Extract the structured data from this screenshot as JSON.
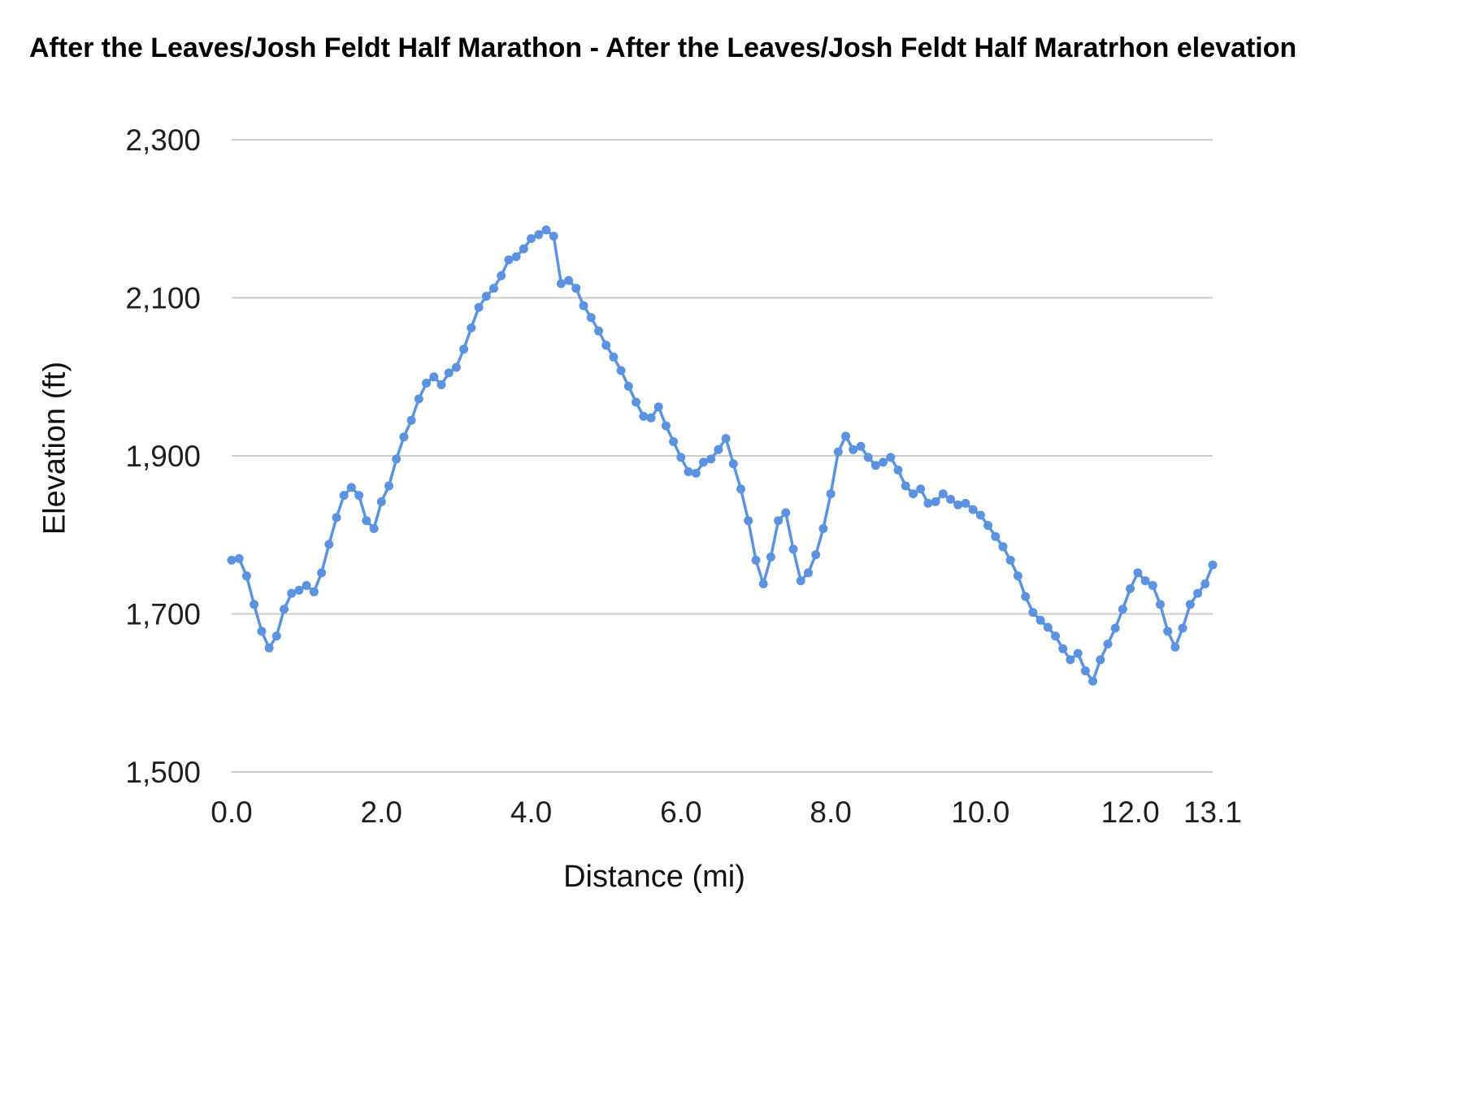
{
  "title": "After the Leaves/Josh Feldt Half Marathon - After the Leaves/Josh Feldt Half Maratrhon elevation",
  "chart_data": {
    "type": "line",
    "title": "After the Leaves/Josh Feldt Half Marathon - After the Leaves/Josh Feldt Half Maratrhon elevation",
    "xlabel": "Distance (mi)",
    "ylabel": "Elevation (ft)",
    "xlim": [
      0,
      13.1
    ],
    "ylim": [
      1500,
      2300
    ],
    "grid": "horizontal",
    "legend": "none",
    "series_color": "#5b93e0",
    "gridline_color": "#cccccc",
    "tick_color": "#1f1f1f",
    "xticks": {
      "values": [
        0,
        2,
        4,
        6,
        8,
        10,
        12,
        13.1
      ],
      "labels": [
        "0.0",
        "2.0",
        "4.0",
        "6.0",
        "8.0",
        "10.0",
        "12.0",
        "13.1"
      ]
    },
    "yticks": {
      "values": [
        1500,
        1700,
        1900,
        2100,
        2300
      ],
      "labels": [
        "1,500",
        "1,700",
        "1,900",
        "2,100",
        "2,300"
      ]
    },
    "points": [
      [
        0.0,
        1768
      ],
      [
        0.1,
        1770
      ],
      [
        0.2,
        1748
      ],
      [
        0.3,
        1712
      ],
      [
        0.4,
        1678
      ],
      [
        0.5,
        1657
      ],
      [
        0.6,
        1672
      ],
      [
        0.7,
        1706
      ],
      [
        0.8,
        1726
      ],
      [
        0.9,
        1730
      ],
      [
        1.0,
        1736
      ],
      [
        1.1,
        1728
      ],
      [
        1.2,
        1752
      ],
      [
        1.3,
        1788
      ],
      [
        1.4,
        1822
      ],
      [
        1.5,
        1850
      ],
      [
        1.6,
        1860
      ],
      [
        1.7,
        1850
      ],
      [
        1.8,
        1818
      ],
      [
        1.9,
        1808
      ],
      [
        2.0,
        1842
      ],
      [
        2.1,
        1862
      ],
      [
        2.2,
        1896
      ],
      [
        2.3,
        1924
      ],
      [
        2.4,
        1945
      ],
      [
        2.5,
        1972
      ],
      [
        2.6,
        1992
      ],
      [
        2.7,
        2000
      ],
      [
        2.8,
        1990
      ],
      [
        2.9,
        2005
      ],
      [
        3.0,
        2012
      ],
      [
        3.1,
        2035
      ],
      [
        3.2,
        2062
      ],
      [
        3.3,
        2088
      ],
      [
        3.4,
        2102
      ],
      [
        3.5,
        2112
      ],
      [
        3.6,
        2128
      ],
      [
        3.7,
        2148
      ],
      [
        3.8,
        2152
      ],
      [
        3.9,
        2162
      ],
      [
        4.0,
        2175
      ],
      [
        4.1,
        2180
      ],
      [
        4.2,
        2186
      ],
      [
        4.3,
        2178
      ],
      [
        4.4,
        2118
      ],
      [
        4.5,
        2122
      ],
      [
        4.6,
        2112
      ],
      [
        4.7,
        2090
      ],
      [
        4.8,
        2075
      ],
      [
        4.9,
        2058
      ],
      [
        5.0,
        2040
      ],
      [
        5.1,
        2025
      ],
      [
        5.2,
        2008
      ],
      [
        5.3,
        1988
      ],
      [
        5.4,
        1968
      ],
      [
        5.5,
        1950
      ],
      [
        5.6,
        1948
      ],
      [
        5.7,
        1962
      ],
      [
        5.8,
        1938
      ],
      [
        5.9,
        1918
      ],
      [
        6.0,
        1898
      ],
      [
        6.1,
        1880
      ],
      [
        6.2,
        1878
      ],
      [
        6.3,
        1892
      ],
      [
        6.4,
        1896
      ],
      [
        6.5,
        1908
      ],
      [
        6.6,
        1922
      ],
      [
        6.7,
        1890
      ],
      [
        6.8,
        1858
      ],
      [
        6.9,
        1818
      ],
      [
        7.0,
        1768
      ],
      [
        7.1,
        1738
      ],
      [
        7.2,
        1772
      ],
      [
        7.3,
        1818
      ],
      [
        7.4,
        1828
      ],
      [
        7.5,
        1782
      ],
      [
        7.6,
        1742
      ],
      [
        7.7,
        1752
      ],
      [
        7.8,
        1775
      ],
      [
        7.9,
        1808
      ],
      [
        8.0,
        1852
      ],
      [
        8.1,
        1905
      ],
      [
        8.2,
        1925
      ],
      [
        8.3,
        1908
      ],
      [
        8.4,
        1912
      ],
      [
        8.5,
        1898
      ],
      [
        8.6,
        1888
      ],
      [
        8.7,
        1892
      ],
      [
        8.8,
        1898
      ],
      [
        8.9,
        1882
      ],
      [
        9.0,
        1862
      ],
      [
        9.1,
        1852
      ],
      [
        9.2,
        1858
      ],
      [
        9.3,
        1840
      ],
      [
        9.4,
        1842
      ],
      [
        9.5,
        1852
      ],
      [
        9.6,
        1845
      ],
      [
        9.7,
        1838
      ],
      [
        9.8,
        1840
      ],
      [
        9.9,
        1832
      ],
      [
        10.0,
        1825
      ],
      [
        10.1,
        1812
      ],
      [
        10.2,
        1798
      ],
      [
        10.3,
        1785
      ],
      [
        10.4,
        1768
      ],
      [
        10.5,
        1748
      ],
      [
        10.6,
        1722
      ],
      [
        10.7,
        1702
      ],
      [
        10.8,
        1692
      ],
      [
        10.9,
        1683
      ],
      [
        11.0,
        1672
      ],
      [
        11.1,
        1656
      ],
      [
        11.2,
        1642
      ],
      [
        11.3,
        1650
      ],
      [
        11.4,
        1628
      ],
      [
        11.5,
        1615
      ],
      [
        11.6,
        1642
      ],
      [
        11.7,
        1662
      ],
      [
        11.8,
        1682
      ],
      [
        11.9,
        1706
      ],
      [
        12.0,
        1732
      ],
      [
        12.1,
        1752
      ],
      [
        12.2,
        1742
      ],
      [
        12.3,
        1736
      ],
      [
        12.4,
        1712
      ],
      [
        12.5,
        1678
      ],
      [
        12.6,
        1658
      ],
      [
        12.7,
        1682
      ],
      [
        12.8,
        1712
      ],
      [
        12.9,
        1726
      ],
      [
        13.0,
        1738
      ],
      [
        13.1,
        1762
      ]
    ]
  }
}
